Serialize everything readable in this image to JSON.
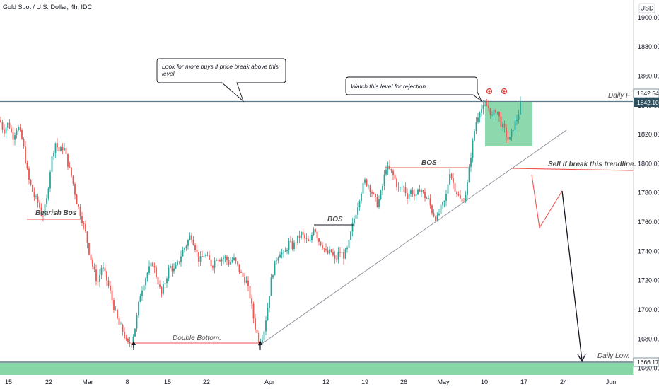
{
  "chart_data": {
    "type": "candlestick",
    "title": "Gold Spot / U.S. Dollar, 4h, IDC",
    "currency": "USD",
    "ylim": [
      1655,
      1912
    ],
    "y_ticks": [
      "1900.00",
      "1880.00",
      "1860.00",
      "1840.00",
      "1820.00",
      "1800.00",
      "1780.00",
      "1760.00",
      "1740.00",
      "1720.00",
      "1700.00",
      "1680.00",
      "1660.00"
    ],
    "x_ticks": [
      "15",
      "22",
      "Mar",
      "8",
      "15",
      "22",
      "Apr",
      "12",
      "19",
      "26",
      "May",
      "10",
      "17",
      "24",
      "Jun"
    ],
    "price_tags": {
      "daily_f_top": "1842.54",
      "last_price": "1842.10",
      "daily_low": "1666.17"
    },
    "colors": {
      "up": "#26a69a",
      "down": "#ef5350",
      "zone": "#79d19d",
      "level_line": "#5d7b8a"
    },
    "path": [
      [
        0,
        1830
      ],
      [
        5,
        1822
      ],
      [
        12,
        1828
      ],
      [
        18,
        1818
      ],
      [
        25,
        1826
      ],
      [
        32,
        1815
      ],
      [
        40,
        1790
      ],
      [
        48,
        1778
      ],
      [
        55,
        1772
      ],
      [
        60,
        1763
      ],
      [
        66,
        1775
      ],
      [
        72,
        1800
      ],
      [
        78,
        1815
      ],
      [
        84,
        1808
      ],
      [
        90,
        1812
      ],
      [
        96,
        1800
      ],
      [
        102,
        1790
      ],
      [
        108,
        1775
      ],
      [
        114,
        1765
      ],
      [
        120,
        1755
      ],
      [
        126,
        1740
      ],
      [
        132,
        1728
      ],
      [
        138,
        1718
      ],
      [
        144,
        1730
      ],
      [
        150,
        1722
      ],
      [
        156,
        1712
      ],
      [
        162,
        1700
      ],
      [
        168,
        1690
      ],
      [
        174,
        1685
      ],
      [
        180,
        1676
      ],
      [
        186,
        1678
      ],
      [
        192,
        1690
      ],
      [
        198,
        1710
      ],
      [
        204,
        1720
      ],
      [
        210,
        1727
      ],
      [
        216,
        1732
      ],
      [
        222,
        1722
      ],
      [
        228,
        1710
      ],
      [
        234,
        1720
      ],
      [
        240,
        1730
      ],
      [
        246,
        1727
      ],
      [
        252,
        1732
      ],
      [
        258,
        1740
      ],
      [
        264,
        1745
      ],
      [
        270,
        1752
      ],
      [
        276,
        1743
      ],
      [
        282,
        1733
      ],
      [
        288,
        1738
      ],
      [
        294,
        1735
      ],
      [
        300,
        1730
      ],
      [
        306,
        1736
      ],
      [
        312,
        1735
      ],
      [
        318,
        1736
      ],
      [
        324,
        1732
      ],
      [
        330,
        1735
      ],
      [
        336,
        1730
      ],
      [
        342,
        1723
      ],
      [
        348,
        1720
      ],
      [
        354,
        1708
      ],
      [
        360,
        1690
      ],
      [
        366,
        1679
      ],
      [
        372,
        1682
      ],
      [
        378,
        1700
      ],
      [
        384,
        1722
      ],
      [
        390,
        1734
      ],
      [
        396,
        1740
      ],
      [
        402,
        1737
      ],
      [
        408,
        1746
      ],
      [
        414,
        1743
      ],
      [
        420,
        1748
      ],
      [
        426,
        1752
      ],
      [
        432,
        1748
      ],
      [
        438,
        1745
      ],
      [
        444,
        1758
      ],
      [
        450,
        1748
      ],
      [
        456,
        1744
      ],
      [
        462,
        1738
      ],
      [
        468,
        1740
      ],
      [
        474,
        1733
      ],
      [
        480,
        1740
      ],
      [
        486,
        1737
      ],
      [
        492,
        1742
      ],
      [
        498,
        1757
      ],
      [
        504,
        1768
      ],
      [
        510,
        1780
      ],
      [
        516,
        1788
      ],
      [
        522,
        1785
      ],
      [
        528,
        1778
      ],
      [
        534,
        1772
      ],
      [
        540,
        1782
      ],
      [
        546,
        1798
      ],
      [
        552,
        1795
      ],
      [
        558,
        1790
      ],
      [
        564,
        1782
      ],
      [
        570,
        1785
      ],
      [
        576,
        1778
      ],
      [
        582,
        1782
      ],
      [
        588,
        1776
      ],
      [
        594,
        1784
      ],
      [
        600,
        1778
      ],
      [
        606,
        1775
      ],
      [
        612,
        1766
      ],
      [
        618,
        1762
      ],
      [
        624,
        1770
      ],
      [
        630,
        1775
      ],
      [
        636,
        1795
      ],
      [
        642,
        1785
      ],
      [
        648,
        1778
      ],
      [
        654,
        1773
      ],
      [
        660,
        1782
      ],
      [
        666,
        1806
      ],
      [
        672,
        1826
      ],
      [
        678,
        1837
      ],
      [
        684,
        1838
      ],
      [
        690,
        1840
      ],
      [
        696,
        1832
      ],
      [
        702,
        1838
      ],
      [
        708,
        1828
      ],
      [
        714,
        1822
      ],
      [
        720,
        1815
      ],
      [
        726,
        1825
      ],
      [
        732,
        1832
      ],
      [
        738,
        1844
      ]
    ],
    "annotations": {
      "note_buys": "Look for more buys if price break above this level.",
      "note_rejection": "Watch this level for rejection.",
      "daily_f": "Daily F",
      "bearish_bos": "Bearish Bos",
      "bos_1": "BOS",
      "bos_2": "BOS",
      "double_bottom": "Double Bottom.",
      "sell_note": "Sell if break this trendline.",
      "daily_low": "Daily Low."
    },
    "grid": false,
    "legend": "none"
  }
}
